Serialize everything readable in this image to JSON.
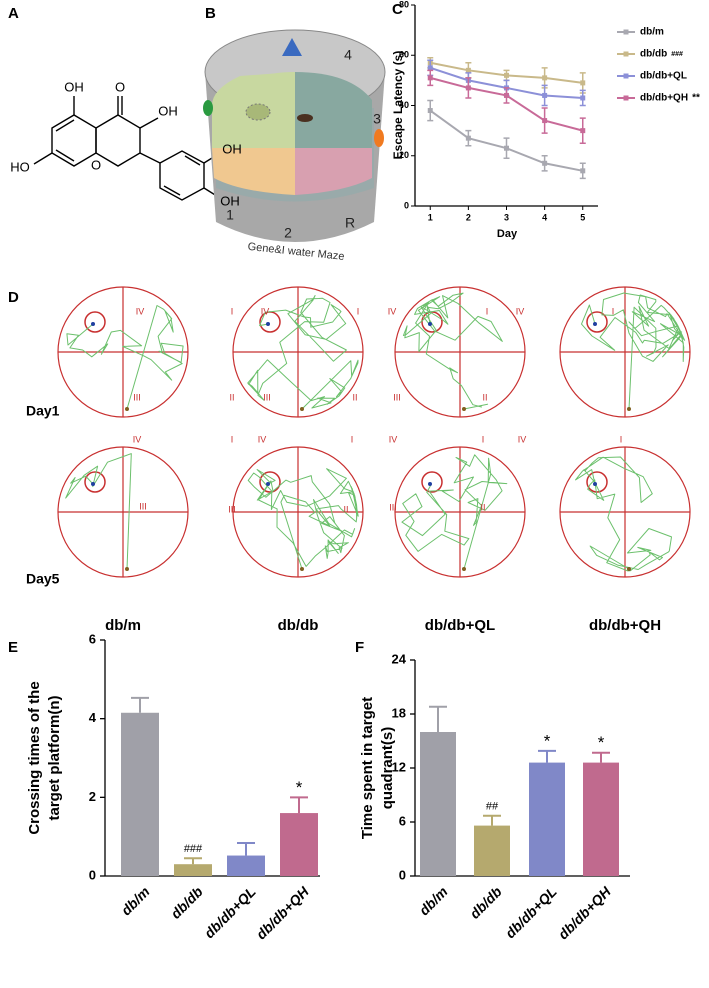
{
  "panels": [
    "A",
    "B",
    "C",
    "D",
    "E",
    "F"
  ],
  "molecule": {
    "labels": [
      "OH",
      "O",
      "OH",
      "HO",
      "O",
      "OH",
      "OH"
    ]
  },
  "maze": {
    "labels": [
      "4",
      "3",
      "1",
      "2",
      "R"
    ],
    "caption": "Gene&I water Maze"
  },
  "tracks": {
    "days": [
      "Day1",
      "Day5"
    ],
    "groups": [
      "db/m",
      "db/db",
      "db/db+QL",
      "db/db+QH"
    ],
    "numerals": [
      "IV",
      "III",
      "I",
      "IV",
      "I",
      "II",
      "III",
      "II",
      "IV",
      "I",
      "IV",
      "III",
      "II",
      "I",
      "IV",
      "I",
      "IV",
      "I",
      "IV",
      "I",
      "IV",
      "I",
      "III",
      "III",
      "II",
      "III",
      "II"
    ]
  },
  "chart_data": [
    {
      "type": "line",
      "xlabel": "Day",
      "ylabel": "Escape  Latency (s)",
      "x": [
        1,
        2,
        3,
        4,
        5
      ],
      "xticks": [
        1,
        2,
        3,
        4,
        5
      ],
      "xlim": [
        0.6,
        5.4
      ],
      "ylim": [
        0,
        80
      ],
      "yticks": [
        0,
        20,
        40,
        60,
        80
      ],
      "series": [
        {
          "name": "db/m",
          "color": "#a8a8b0",
          "values": [
            38,
            27,
            23,
            17,
            14
          ],
          "errors": [
            4,
            3,
            4,
            3,
            3
          ]
        },
        {
          "name": "db/db",
          "note": "###",
          "color": "#c9b98a",
          "values": [
            57,
            54,
            52,
            51,
            49
          ],
          "errors": [
            2,
            3,
            2,
            4,
            4
          ]
        },
        {
          "name": "db/db+QL",
          "color": "#8c90d8",
          "values": [
            55,
            50,
            47,
            44,
            43
          ],
          "errors": [
            3,
            3,
            3,
            4,
            3
          ]
        },
        {
          "name": "db/db+QH",
          "note": "**",
          "color": "#c86a98",
          "values": [
            51,
            47,
            44,
            34,
            30
          ],
          "errors": [
            3,
            4,
            3,
            5,
            5
          ]
        }
      ]
    },
    {
      "type": "bar",
      "ylabel": [
        "Crossing times of the",
        "target platform(n)"
      ],
      "categories": [
        "db/m",
        "db/db",
        "db/db+QL",
        "db/db+QH"
      ],
      "values": [
        4.15,
        0.3,
        0.52,
        1.6
      ],
      "errors": [
        0.38,
        0.15,
        0.32,
        0.4
      ],
      "colors": [
        "#a0a0a8",
        "#b5a96e",
        "#8088c8",
        "#c06a8e"
      ],
      "annotations": [
        null,
        "###",
        null,
        "*"
      ],
      "ylim": [
        0,
        6
      ],
      "yticks": [
        0,
        2,
        4,
        6
      ]
    },
    {
      "type": "bar",
      "ylabel": [
        "Time spent in target",
        "quadrant(s)"
      ],
      "categories": [
        "db/m",
        "db/db",
        "db/db+QL",
        "db/db+QH"
      ],
      "values": [
        16,
        5.6,
        12.6,
        12.6
      ],
      "errors": [
        2.8,
        1.1,
        1.3,
        1.1
      ],
      "colors": [
        "#a0a0a8",
        "#b5a96e",
        "#8088c8",
        "#c06a8e"
      ],
      "annotations": [
        null,
        "##",
        "*",
        "*"
      ],
      "ylim": [
        0,
        24
      ],
      "yticks": [
        0,
        6,
        12,
        18,
        24
      ]
    }
  ]
}
